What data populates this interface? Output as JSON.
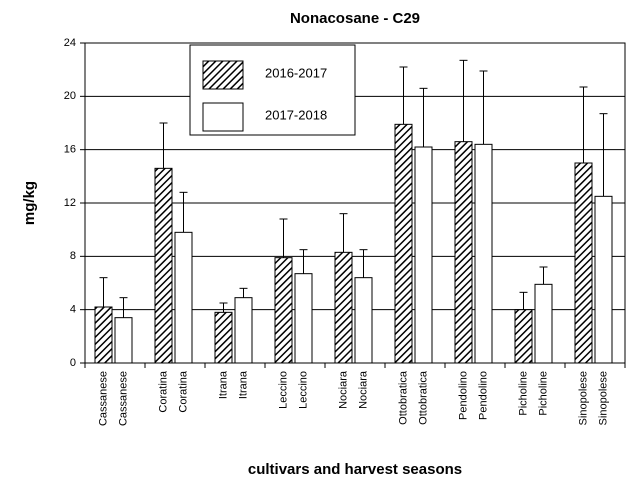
{
  "chart_data": {
    "type": "bar",
    "title": "Nonacosane - C29",
    "ylabel": "mg/kg",
    "xlabel": "cultivars and harvest seasons",
    "categories": [
      "Cassanese",
      "Coratina",
      "Itrana",
      "Leccino",
      "Nociara",
      "Ottobratica",
      "Pendolino",
      "Picholine",
      "Sinopolese"
    ],
    "series": [
      {
        "name": "2016-2017",
        "color": "#000000",
        "pattern": "hatch",
        "values": [
          4.2,
          14.6,
          3.8,
          7.9,
          8.3,
          17.9,
          16.6,
          4.0,
          15.0
        ],
        "errors": [
          2.2,
          3.4,
          0.7,
          2.9,
          2.9,
          4.3,
          6.1,
          1.3,
          5.7
        ]
      },
      {
        "name": "2017-2018",
        "color": "#ffffff",
        "values": [
          3.4,
          9.8,
          4.9,
          6.7,
          6.4,
          16.2,
          16.4,
          5.9,
          12.5
        ],
        "errors": [
          1.5,
          3.0,
          0.7,
          1.8,
          2.1,
          4.4,
          5.5,
          1.3,
          6.2
        ]
      }
    ],
    "ylim": [
      0,
      24
    ],
    "yticks": [
      0,
      4,
      8,
      12,
      16,
      20,
      24
    ],
    "grid": true
  }
}
